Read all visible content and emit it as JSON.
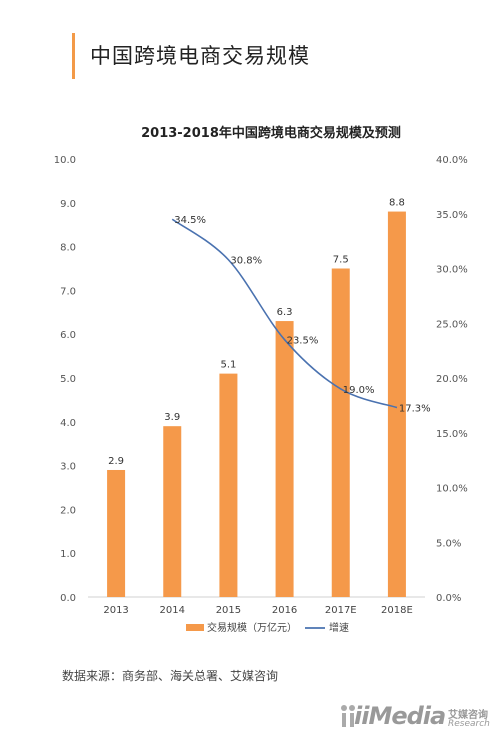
{
  "page": {
    "title": "中国跨境电商交易规模",
    "source": "数据来源：商务部、海关总署、艾媒咨询"
  },
  "logo": {
    "main": "iiMedia",
    "cn": "艾媒咨询",
    "en": "Research"
  },
  "colors": {
    "bar": "#f5994a",
    "line": "#4a72b0",
    "accent": "#f39a48"
  },
  "chart_data": {
    "type": "bar",
    "title": "2013-2018年中国跨境电商交易规模及预测",
    "categories": [
      "2013",
      "2014",
      "2015",
      "2016",
      "2017E",
      "2018E"
    ],
    "series": [
      {
        "name": "交易规模（万亿元）",
        "type": "bar",
        "axis": "left",
        "values": [
          2.9,
          3.9,
          5.1,
          6.3,
          7.5,
          8.8
        ],
        "labels": [
          "2.9",
          "3.9",
          "5.1",
          "6.3",
          "7.5",
          "8.8"
        ]
      },
      {
        "name": "增速",
        "type": "line",
        "axis": "right",
        "values": [
          null,
          34.5,
          30.8,
          23.5,
          19.0,
          17.3
        ],
        "labels": [
          "",
          "34.5%",
          "30.8%",
          "23.5%",
          "19.0%",
          "17.3%"
        ]
      }
    ],
    "y_left": {
      "min": 0,
      "max": 10,
      "ticks": [
        "0.0",
        "1.0",
        "2.0",
        "3.0",
        "4.0",
        "5.0",
        "6.0",
        "7.0",
        "8.0",
        "9.0",
        "10.0"
      ]
    },
    "y_right": {
      "min": 0,
      "max": 40,
      "ticks": [
        "0.0%",
        "5.0%",
        "10.0%",
        "15.0%",
        "20.0%",
        "25.0%",
        "30.0%",
        "35.0%",
        "40.0%"
      ]
    },
    "grid": false,
    "legend": "bottom"
  }
}
